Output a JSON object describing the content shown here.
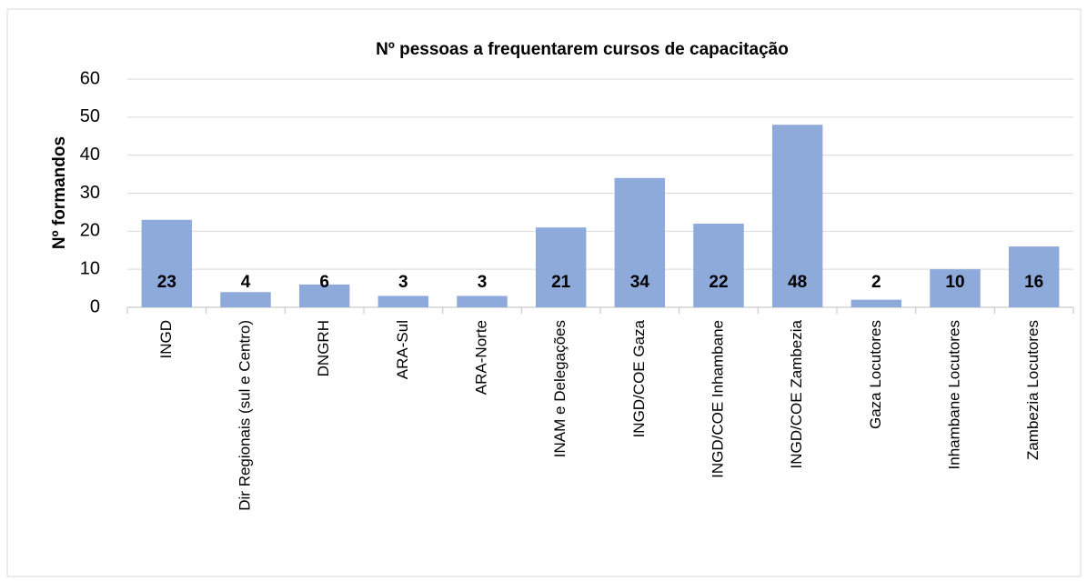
{
  "chart_data": {
    "type": "bar",
    "title": "Nº pessoas a frequentarem cursos de capacitação",
    "y_label": "Nº formandos",
    "categories": [
      "INGD",
      "Dir Regionais (sul e Centro)",
      "DNGRH",
      "ARA-Sul",
      "ARA-Norte",
      "INAM e Delegações",
      "INGD/COE Gaza",
      "INGD/COE Inhambane",
      "INGD/COE Zambezia",
      "Gaza Locutores",
      "Inhambane Locutores",
      "Zambezia Locutores"
    ],
    "values": [
      23,
      4,
      6,
      3,
      3,
      21,
      34,
      22,
      48,
      2,
      10,
      16
    ],
    "color": "#8eaadb",
    "ylim": [
      0,
      60
    ],
    "yticks": [
      0,
      10,
      20,
      30,
      40,
      50,
      60
    ],
    "grid": true
  }
}
